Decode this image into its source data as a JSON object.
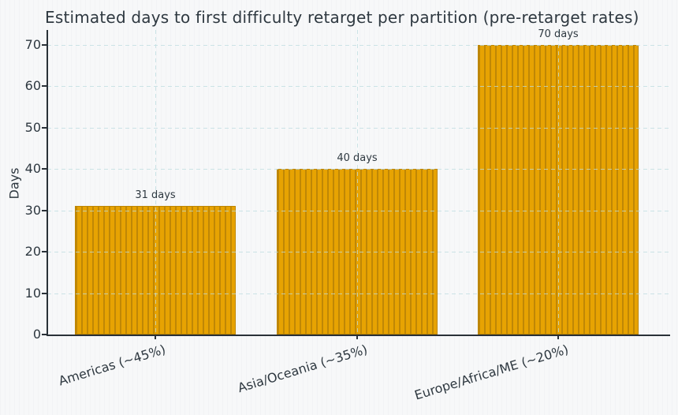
{
  "chart_data": {
    "type": "bar",
    "title": "Estimated days to first difficulty retarget per partition (pre-retarget rates)",
    "xlabel": "",
    "ylabel": "Days",
    "categories": [
      "Americas (~45%)",
      "Asia/Oceania (~35%)",
      "Europe/Africa/ME (~20%)"
    ],
    "values": [
      31,
      40,
      70
    ],
    "bar_labels": [
      "31 days",
      "40 days",
      "70 days"
    ],
    "yticks": [
      0,
      10,
      20,
      30,
      40,
      50,
      60,
      70
    ],
    "ylim": [
      0,
      70
    ],
    "grid": "dashed horizontal and vertical at category centers, drawn over bars",
    "legend_position": "none",
    "bar_hatch": "vertical-stripes",
    "colors": {
      "bar_fill": "#E7A302",
      "bar_hatch": "#BF8706",
      "bar_edge": "#BE8600",
      "grid": "#BCDCE0",
      "axis": "#2A3138",
      "text": "#2E3840",
      "background": "#F7F8F9"
    }
  }
}
